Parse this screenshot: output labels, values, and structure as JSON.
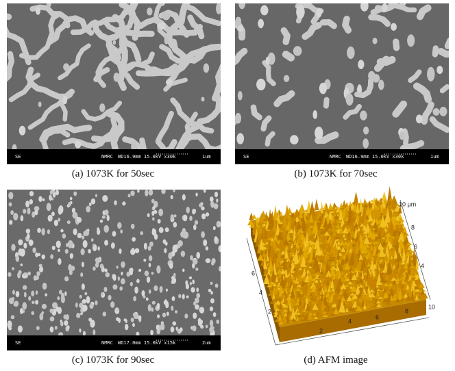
{
  "panels": [
    {
      "caption": "(a) 1073K for 50sec",
      "sem_bar": {
        "detector": "SE",
        "institution": "NMRC",
        "settings": "WD16.9mm 15.0kV x30k",
        "scale": "1um"
      }
    },
    {
      "caption": "(b) 1073K for 70sec",
      "sem_bar": {
        "detector": "SE",
        "institution": "NMRC",
        "settings": "WD16.9mm 15.0kV x30k",
        "scale": "1um"
      }
    },
    {
      "caption": "(c) 1073K for 90sec",
      "sem_bar": {
        "detector": "SE",
        "institution": "NMRC",
        "settings": "WD17.0mm 15.0kV x15k",
        "scale": "2um"
      }
    },
    {
      "caption": "(d) AFM image",
      "afm": {
        "z_label": "10 µm",
        "right_ticks": [
          "8",
          "6",
          "4"
        ],
        "left_ticks": [
          "6",
          "4",
          "2"
        ],
        "bottom_ticks": [
          "2",
          "4",
          "6",
          "8",
          "10"
        ]
      }
    }
  ]
}
